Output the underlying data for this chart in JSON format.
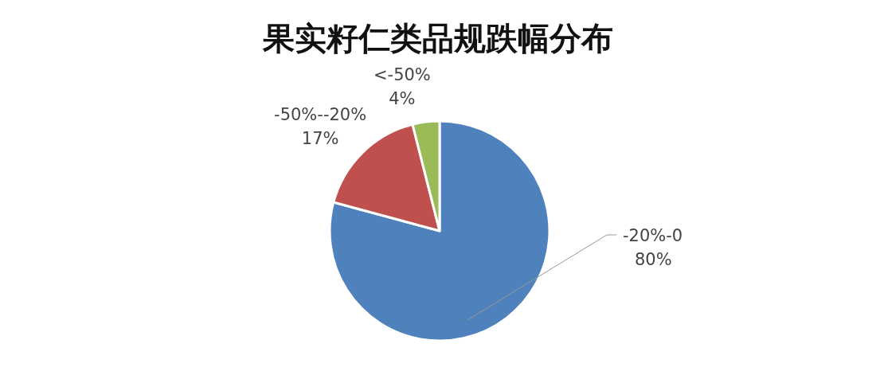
{
  "chart_data": {
    "type": "pie",
    "title": "果实籽仁类品规跌幅分布",
    "categories": [
      "-20%-0",
      "-50%--20%",
      "<-50%"
    ],
    "values": [
      80,
      17,
      4
    ],
    "colors": [
      "#4f81bd",
      "#c0504d",
      "#9bbb59"
    ],
    "value_labels": [
      "80%",
      "17%",
      "4%"
    ]
  }
}
